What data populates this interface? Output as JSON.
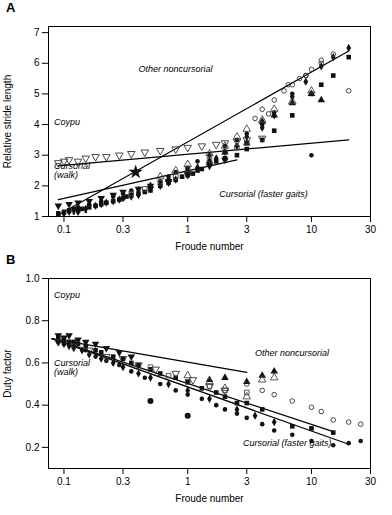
{
  "chart_data": [
    {
      "type": "scatter",
      "title": "A",
      "x_label": "Froude number",
      "y_label": "Relative stride length",
      "log": "x",
      "grid": false,
      "xlim": [
        0.075,
        30
      ],
      "xticks": [
        0.1,
        0.3,
        1,
        3,
        10,
        30
      ],
      "ylim": [
        1.0,
        7.2
      ],
      "yticks": [
        1,
        2,
        3,
        4,
        5,
        6,
        7
      ],
      "series": [
        {
          "type": "line",
          "color": "#000000",
          "x": [
            0.09,
            20.0
          ],
          "values": [
            1.05,
            6.4
          ]
        },
        {
          "type": "line",
          "color": "#000000",
          "x": [
            0.09,
            2.5
          ],
          "values": [
            1.55,
            2.85
          ]
        },
        {
          "type": "line",
          "color": "#000000",
          "x": [
            0.09,
            20.0
          ],
          "values": [
            2.65,
            3.5
          ]
        },
        {
          "type": "scatter",
          "marker": "square",
          "color": "#111111",
          "x": [
            0.09,
            0.1,
            0.11,
            0.12,
            0.13,
            0.14,
            0.16,
            0.18,
            0.2,
            0.22,
            0.25,
            0.28,
            0.3,
            0.32,
            0.35,
            0.4,
            0.45,
            0.5,
            0.6,
            0.7,
            0.8,
            0.9,
            1.0,
            1.1,
            1.2,
            1.3,
            1.5,
            1.7,
            2.0,
            2.5,
            3.0,
            4.0,
            5.0,
            7.0,
            10.0,
            12.0,
            15.0,
            20.0
          ],
          "values": [
            1.1,
            1.15,
            1.2,
            1.25,
            1.2,
            1.25,
            1.3,
            1.35,
            1.4,
            1.45,
            1.5,
            1.55,
            1.6,
            1.65,
            1.7,
            1.75,
            1.8,
            1.85,
            2.0,
            2.1,
            2.2,
            2.3,
            2.35,
            2.4,
            2.5,
            2.55,
            2.7,
            2.8,
            2.9,
            3.0,
            3.2,
            3.5,
            3.8,
            4.3,
            5.0,
            5.3,
            5.6,
            6.2
          ]
        },
        {
          "type": "scatter",
          "marker": "diamond",
          "color": "#111111",
          "x": [
            0.09,
            0.1,
            0.11,
            0.12,
            0.13,
            0.15,
            0.18,
            0.2,
            0.22,
            0.25,
            0.28,
            0.3,
            0.35,
            0.4,
            0.5,
            0.6,
            0.7,
            0.8,
            1.0,
            1.2,
            1.5,
            1.7,
            2.0,
            2.5,
            3.0,
            4.0,
            5.0,
            7.0,
            9.0,
            12.0,
            15.0,
            20.0
          ],
          "values": [
            1.05,
            1.1,
            1.15,
            1.2,
            1.15,
            1.25,
            1.35,
            1.4,
            1.45,
            1.5,
            1.55,
            1.6,
            1.65,
            1.7,
            1.9,
            2.0,
            2.1,
            2.2,
            2.4,
            2.6,
            2.8,
            2.9,
            3.1,
            3.3,
            3.6,
            3.9,
            4.3,
            4.9,
            5.4,
            5.9,
            6.2,
            6.5
          ]
        },
        {
          "type": "scatter",
          "marker": "circle",
          "color": "#111111",
          "x": [
            0.13,
            0.16,
            0.2,
            0.25,
            0.3,
            0.35,
            0.4,
            0.5,
            0.6,
            0.7,
            0.8,
            1.0,
            1.2,
            1.5,
            2.0,
            2.5,
            3.0,
            4.0,
            5.0,
            7.0,
            10.0
          ],
          "values": [
            1.3,
            1.4,
            1.5,
            1.65,
            1.75,
            1.85,
            1.9,
            2.0,
            2.15,
            2.3,
            2.45,
            2.6,
            2.8,
            3.0,
            3.3,
            3.5,
            3.7,
            4.0,
            4.4,
            5.0,
            3.0
          ]
        },
        {
          "type": "scatter",
          "marker": "triangle_up",
          "color": "#111111",
          "x": [
            0.5,
            0.7,
            1.0,
            1.5,
            2.0,
            3.0,
            4.0,
            5.0,
            7.0,
            10.0,
            12.0
          ],
          "values": [
            2.0,
            2.2,
            2.5,
            2.8,
            3.1,
            3.4,
            4.1,
            4.3,
            4.7,
            5.0,
            4.8
          ]
        },
        {
          "type": "scatter",
          "marker": "triangle_down",
          "color": "#111111",
          "x": [
            0.09,
            0.11,
            0.13,
            0.16,
            0.2,
            0.25,
            0.3,
            0.4,
            0.5,
            0.7,
            1.0,
            1.5,
            2.0
          ],
          "values": [
            1.35,
            1.4,
            1.45,
            1.5,
            1.6,
            1.7,
            1.8,
            1.9,
            2.0,
            2.15,
            2.35,
            2.65,
            2.85
          ]
        },
        {
          "type": "scatter",
          "marker": "dot",
          "color": "#111111",
          "x": [
            0.1,
            0.12,
            0.15
          ],
          "values": [
            1.05,
            1.1,
            1.15
          ]
        },
        {
          "type": "scatter",
          "marker": "open_triangle_down",
          "color": "#333333",
          "x": [
            0.09,
            0.1,
            0.11,
            0.13,
            0.15,
            0.18,
            0.22,
            0.28,
            0.35,
            0.45,
            0.6,
            0.8,
            1.0,
            1.3,
            1.7,
            2.0,
            2.5,
            3.0,
            4.0
          ],
          "values": [
            2.75,
            2.8,
            2.85,
            2.8,
            2.9,
            2.95,
            2.95,
            3.0,
            3.05,
            3.1,
            3.15,
            3.2,
            3.25,
            3.3,
            3.35,
            3.4,
            3.45,
            3.5,
            3.55
          ]
        },
        {
          "type": "scatter",
          "marker": "open_circle",
          "color": "#333333",
          "x": [
            3.5,
            4.0,
            5.0,
            6.0,
            7.0,
            8.0,
            9.0,
            10.0,
            12.0,
            15.0,
            20.0,
            4.5,
            6.5,
            9.0,
            12.0
          ],
          "values": [
            4.2,
            4.5,
            4.8,
            5.1,
            5.3,
            5.5,
            5.6,
            5.8,
            6.1,
            6.3,
            5.1,
            4.35,
            5.3,
            5.6,
            6.0
          ]
        },
        {
          "type": "scatter",
          "marker": "open_triangle_up",
          "color": "#444444",
          "x": [
            0.6,
            0.8,
            1.0,
            1.5,
            2.0,
            2.5,
            3.0,
            4.0,
            5.0,
            7.0,
            10.0
          ],
          "values": [
            2.3,
            2.5,
            2.7,
            3.05,
            3.3,
            3.6,
            3.85,
            4.15,
            4.5,
            4.75,
            5.1
          ]
        },
        {
          "type": "scatter",
          "marker": "open_square",
          "color": "#444444",
          "x": [
            0.35,
            0.45,
            0.6,
            0.8,
            1.0,
            1.5,
            2.0,
            2.5,
            3.0
          ],
          "values": [
            1.75,
            1.9,
            2.1,
            2.3,
            2.55,
            2.85,
            3.1,
            3.25,
            3.4
          ]
        },
        {
          "type": "scatter",
          "marker": "star",
          "color": "#111111",
          "x": [
            0.38
          ],
          "values": [
            2.45
          ]
        }
      ],
      "annotations": [
        {
          "text": "Other noncursorial",
          "x": 0.4,
          "y": 5.7
        },
        {
          "text": "Coypu",
          "x": 0.083,
          "y": 4.0
        },
        {
          "text": "Cursorial\n(walk)",
          "x": 0.083,
          "y": 2.25
        },
        {
          "text": "Cursorial (faster gaits)",
          "x": 1.8,
          "y": 1.65
        }
      ]
    },
    {
      "type": "scatter",
      "title": "B",
      "x_label": "Froude number",
      "y_label": "Duty factor",
      "log": "x",
      "grid": false,
      "xlim": [
        0.075,
        30
      ],
      "xticks": [
        0.1,
        0.3,
        1,
        3,
        10,
        30
      ],
      "ylim": [
        0.1,
        1.0
      ],
      "yticks": [
        0.2,
        0.4,
        0.6,
        0.8,
        {
          "value": 1.0,
          "label": "1.0"
        }
      ],
      "series": [
        {
          "type": "line",
          "color": "#000000",
          "x": [
            0.08,
            20.0
          ],
          "values": [
            0.715,
            0.215
          ]
        },
        {
          "type": "line",
          "color": "#000000",
          "x": [
            0.08,
            15.0
          ],
          "values": [
            0.715,
            0.275
          ]
        },
        {
          "type": "line",
          "color": "#000000",
          "x": [
            0.08,
            3.0
          ],
          "values": [
            0.715,
            0.555
          ]
        },
        {
          "type": "scatter",
          "marker": "square",
          "color": "#111111",
          "x": [
            0.09,
            0.1,
            0.11,
            0.12,
            0.13,
            0.15,
            0.18,
            0.2,
            0.25,
            0.3,
            0.35,
            0.4,
            0.5,
            0.6,
            0.8,
            1.0,
            1.3,
            1.7,
            2.0,
            2.5,
            3.0,
            4.0,
            7.0,
            10.0,
            15.0
          ],
          "values": [
            0.72,
            0.71,
            0.7,
            0.7,
            0.69,
            0.68,
            0.66,
            0.65,
            0.63,
            0.62,
            0.6,
            0.59,
            0.57,
            0.55,
            0.53,
            0.51,
            0.48,
            0.46,
            0.44,
            0.41,
            0.41,
            0.38,
            0.3,
            0.29,
            0.27
          ]
        },
        {
          "type": "scatter",
          "marker": "diamond",
          "color": "#111111",
          "x": [
            0.09,
            0.1,
            0.11,
            0.12,
            0.14,
            0.16,
            0.2,
            0.25,
            0.3,
            0.4,
            0.5,
            0.7,
            1.0,
            1.5,
            2.5,
            3.5,
            5.0
          ],
          "values": [
            0.7,
            0.69,
            0.68,
            0.67,
            0.66,
            0.64,
            0.62,
            0.6,
            0.58,
            0.55,
            0.53,
            0.5,
            0.47,
            0.43,
            0.38,
            0.35,
            0.32
          ]
        },
        {
          "type": "scatter",
          "marker": "circle",
          "color": "#111111",
          "x": [
            0.09,
            0.1,
            0.12,
            0.15,
            0.18,
            0.22,
            0.28,
            0.35,
            0.45,
            0.6,
            0.8,
            1.0,
            1.3,
            1.7,
            2.0,
            2.5,
            3.0,
            4.0,
            5.0,
            7.0,
            10.0,
            15.0,
            20.0,
            25.0
          ],
          "values": [
            0.7,
            0.69,
            0.68,
            0.66,
            0.63,
            0.61,
            0.59,
            0.56,
            0.53,
            0.5,
            0.47,
            0.45,
            0.43,
            0.4,
            0.38,
            0.36,
            0.34,
            0.31,
            0.28,
            0.26,
            0.23,
            0.21,
            0.22,
            0.23
          ]
        },
        {
          "type": "scatter",
          "marker": "triangle_up",
          "color": "#111111",
          "x": [
            1.5,
            2.0,
            3.0,
            4.0,
            5.0
          ],
          "values": [
            0.52,
            0.53,
            0.51,
            0.54,
            0.56
          ]
        },
        {
          "type": "scatter",
          "marker": "triangle_down",
          "color": "#111111",
          "x": [
            0.09,
            0.1,
            0.11,
            0.13,
            0.15,
            0.18,
            0.22,
            0.28,
            0.35
          ],
          "values": [
            0.73,
            0.72,
            0.73,
            0.71,
            0.7,
            0.69,
            0.67,
            0.65,
            0.63
          ]
        },
        {
          "type": "scatter",
          "marker": "large_circle",
          "color": "#111111",
          "x": [
            0.5,
            1.0
          ],
          "values": [
            0.42,
            0.35
          ]
        },
        {
          "type": "scatter",
          "marker": "open_triangle_down",
          "color": "#333333",
          "x": [
            0.09,
            0.12,
            0.16,
            0.22,
            0.3,
            0.4,
            0.55,
            0.8,
            1.1,
            1.5,
            2.0
          ],
          "values": [
            0.7,
            0.68,
            0.66,
            0.63,
            0.62,
            0.59,
            0.57,
            0.55,
            0.52,
            0.49,
            0.47
          ]
        },
        {
          "type": "scatter",
          "marker": "open_circle",
          "color": "#333333",
          "x": [
            3.0,
            4.0,
            5.0,
            7.0,
            10.0,
            12.0,
            15.0,
            20.0,
            25.0
          ],
          "values": [
            0.5,
            0.47,
            0.45,
            0.42,
            0.39,
            0.37,
            0.33,
            0.32,
            0.31
          ]
        },
        {
          "type": "scatter",
          "marker": "open_triangle_up",
          "color": "#444444",
          "x": [
            1.0,
            1.5,
            2.0,
            3.0,
            4.0,
            5.0
          ],
          "values": [
            0.54,
            0.51,
            0.48,
            0.44,
            0.52,
            0.53
          ]
        },
        {
          "type": "scatter",
          "marker": "open_square",
          "color": "#444444",
          "x": [
            0.5,
            0.7,
            1.0,
            1.5,
            2.0,
            3.0
          ],
          "values": [
            0.58,
            0.54,
            0.51,
            0.49,
            0.47,
            0.46
          ]
        }
      ],
      "annotations": [
        {
          "text": "Coypu",
          "x": 0.083,
          "y": 0.91
        },
        {
          "text": "Other noncursorial",
          "x": 3.5,
          "y": 0.635
        },
        {
          "text": "Cursorial\n(walk)",
          "x": 0.083,
          "y": 0.545
        },
        {
          "text": "Cursorial (faster gaits)",
          "x": 2.8,
          "y": 0.205
        }
      ]
    }
  ]
}
